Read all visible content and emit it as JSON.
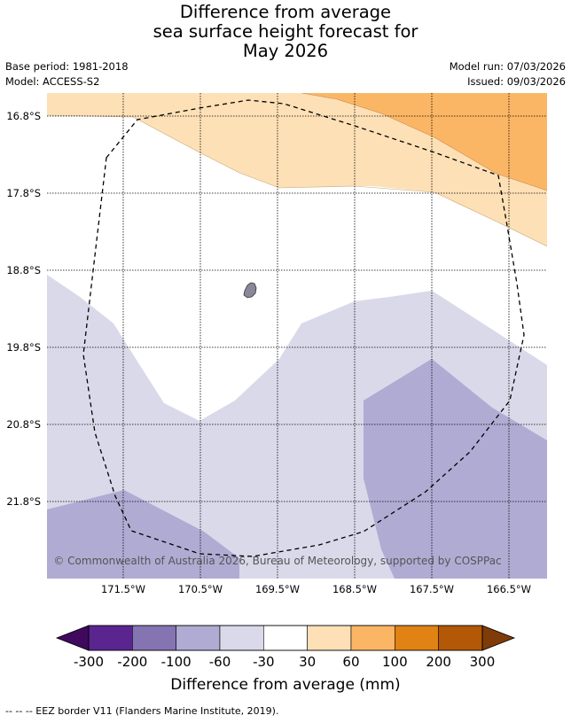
{
  "title": {
    "line1": "Difference from average",
    "line2": "sea surface height forecast for",
    "line3": "May 2026"
  },
  "meta": {
    "base_period": "Base period: 1981-2018",
    "model": "Model: ACCESS-S2",
    "model_run": "Model run: 07/03/2026",
    "issued": "Issued: 09/03/2026"
  },
  "map": {
    "lat_labels": [
      "16.8°S",
      "17.8°S",
      "18.8°S",
      "19.8°S",
      "20.8°S",
      "21.8°S"
    ],
    "lon_labels": [
      "171.5°W",
      "170.5°W",
      "169.5°W",
      "168.5°W",
      "167.5°W",
      "166.5°W"
    ],
    "copyright": "© Commonwealth of Australia 2026, Bureau of Meteorology, supported by COSPPac",
    "colors": {
      "c_neg100_neg60": "#b0abd3",
      "c_neg60_neg30": "#d9d9ea",
      "c_30_60": "#fde0b6",
      "c_60_100": "#fbb665",
      "island": "#8a8799",
      "grid": "#000000",
      "eez": "#000000"
    }
  },
  "colorbar": {
    "ticks": [
      "-300",
      "-200",
      "-100",
      "-60",
      "-30",
      "30",
      "60",
      "100",
      "200",
      "300"
    ],
    "colors": [
      "#5b2590",
      "#8574b2",
      "#b0abd3",
      "#d9d9ea",
      "#ffffff",
      "#fde0b6",
      "#fbb665",
      "#e08214",
      "#b35806"
    ],
    "low_extend_color": "#3f0a5e",
    "high_extend_color": "#7f3b08",
    "label": "Difference from average (mm)"
  },
  "footnote": "--  --  -- EEZ border V11 (Flanders Marine Institute, 2019)."
}
